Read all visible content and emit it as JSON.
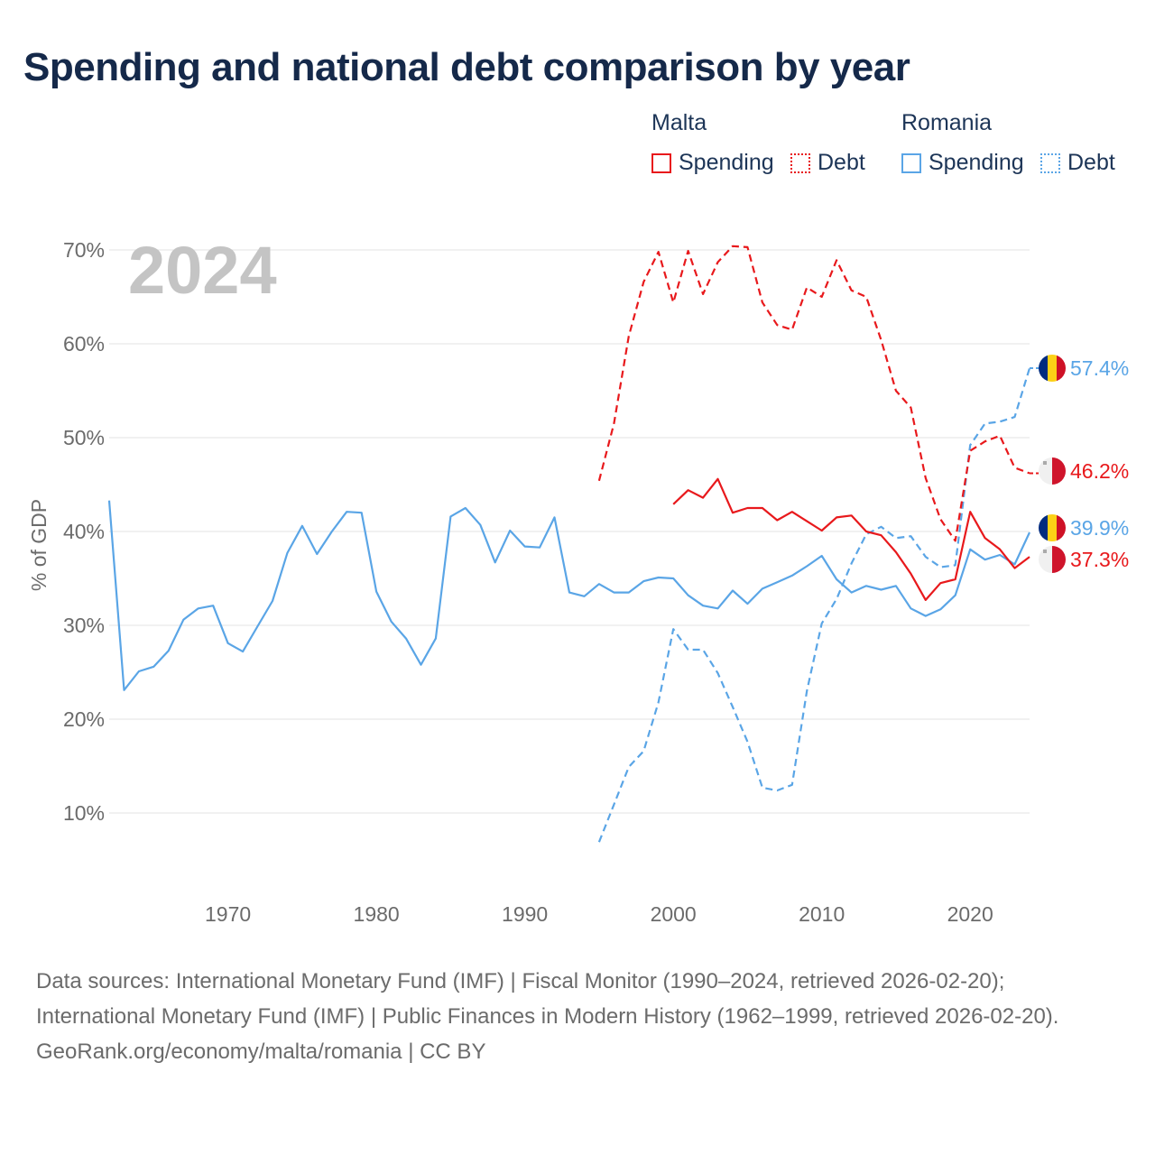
{
  "title": "Spending and national debt comparison by year",
  "legend": {
    "groups": [
      {
        "name": "Malta",
        "items": [
          {
            "label": "Spending",
            "style": "solid"
          },
          {
            "label": "Debt",
            "style": "dashed"
          }
        ],
        "color": "#e8191c"
      },
      {
        "name": "Romania",
        "items": [
          {
            "label": "Spending",
            "style": "solid"
          },
          {
            "label": "Debt",
            "style": "dashed"
          }
        ],
        "color": "#5aa5e6"
      }
    ]
  },
  "footer": {
    "sources": "Data sources: International Monetary Fund (IMF) | Fiscal Monitor (1990–2024, retrieved 2026-02-20); International Monetary Fund (IMF) | Public Finances in Modern History (1962–1999, retrieved 2026-02-20).",
    "credit": "GeoRank.org/economy/malta/romania | CC BY"
  },
  "chart_data": {
    "type": "line",
    "title": "Spending and national debt comparison by year",
    "year_label": "2024",
    "ylabel": "% of GDP",
    "xlabel": "",
    "xlim": [
      1962,
      2024
    ],
    "ylim": [
      3,
      75
    ],
    "y_ticks": [
      10,
      20,
      30,
      40,
      50,
      60,
      70
    ],
    "y_tick_labels": [
      "10%",
      "20%",
      "30%",
      "40%",
      "50%",
      "60%",
      "70%"
    ],
    "x_ticks": [
      1970,
      1980,
      1990,
      2000,
      2010,
      2020
    ],
    "x_tick_labels": [
      "1970",
      "1980",
      "1990",
      "2000",
      "2010",
      "2020"
    ],
    "grid": true,
    "colors": {
      "malta": "#e8191c",
      "romania": "#5aa5e6"
    },
    "series": [
      {
        "name": "Romania Spending",
        "country": "romania",
        "style": "solid",
        "end_label": "39.9%",
        "x": [
          1962,
          1963,
          1964,
          1965,
          1966,
          1967,
          1968,
          1969,
          1970,
          1971,
          1972,
          1973,
          1974,
          1975,
          1976,
          1977,
          1978,
          1979,
          1980,
          1981,
          1982,
          1983,
          1984,
          1985,
          1986,
          1987,
          1988,
          1989,
          1990,
          1991,
          1992,
          1993,
          1994,
          1995,
          1996,
          1997,
          1998,
          1999,
          2000,
          2001,
          2002,
          2003,
          2004,
          2005,
          2006,
          2007,
          2008,
          2009,
          2010,
          2011,
          2012,
          2013,
          2014,
          2015,
          2016,
          2017,
          2018,
          2019,
          2020,
          2021,
          2022,
          2023,
          2024
        ],
        "values": [
          43.3,
          23.1,
          25.1,
          25.6,
          27.3,
          30.6,
          31.8,
          32.1,
          28.1,
          27.2,
          29.9,
          32.6,
          37.7,
          40.6,
          37.6,
          40.0,
          42.1,
          42.0,
          33.6,
          30.4,
          28.6,
          25.8,
          28.6,
          41.6,
          42.5,
          40.7,
          36.7,
          40.1,
          38.4,
          38.3,
          41.5,
          33.5,
          33.1,
          34.4,
          33.5,
          33.5,
          34.7,
          35.1,
          35.0,
          33.2,
          32.1,
          31.8,
          33.7,
          32.3,
          33.9,
          34.6,
          35.3,
          36.3,
          37.4,
          34.9,
          33.5,
          34.2,
          33.8,
          34.2,
          31.8,
          31.0,
          31.7,
          33.2,
          38.1,
          37.0,
          37.5,
          36.5,
          39.9
        ]
      },
      {
        "name": "Romania Debt",
        "country": "romania",
        "style": "dashed",
        "end_label": "57.4%",
        "x": [
          1995,
          1996,
          1997,
          1998,
          1999,
          2000,
          2001,
          2002,
          2003,
          2004,
          2005,
          2006,
          2007,
          2008,
          2009,
          2010,
          2011,
          2012,
          2013,
          2014,
          2015,
          2016,
          2017,
          2018,
          2019,
          2020,
          2021,
          2022,
          2023,
          2024
        ],
        "values": [
          6.9,
          10.9,
          14.9,
          16.6,
          21.8,
          29.6,
          27.4,
          27.4,
          24.9,
          21.3,
          17.6,
          12.7,
          12.4,
          13.0,
          23.0,
          30.2,
          32.8,
          36.6,
          39.7,
          40.5,
          39.3,
          39.5,
          37.3,
          36.2,
          36.4,
          49.2,
          51.5,
          51.7,
          52.2,
          57.4
        ]
      },
      {
        "name": "Malta Spending",
        "country": "malta",
        "style": "solid",
        "end_label": "37.3%",
        "x": [
          2000,
          2001,
          2002,
          2003,
          2004,
          2005,
          2006,
          2007,
          2008,
          2009,
          2010,
          2011,
          2012,
          2013,
          2014,
          2015,
          2016,
          2017,
          2018,
          2019,
          2020,
          2021,
          2022,
          2023,
          2024
        ],
        "values": [
          42.9,
          44.4,
          43.6,
          45.6,
          42.0,
          42.5,
          42.5,
          41.2,
          42.1,
          41.1,
          40.1,
          41.5,
          41.7,
          40.0,
          39.6,
          37.8,
          35.5,
          32.7,
          34.5,
          34.9,
          42.1,
          39.3,
          38.1,
          36.1,
          37.3
        ]
      },
      {
        "name": "Malta Debt",
        "country": "malta",
        "style": "dashed",
        "end_label": "46.2%",
        "x": [
          1995,
          1996,
          1997,
          1998,
          1999,
          2000,
          2001,
          2002,
          2003,
          2004,
          2005,
          2006,
          2007,
          2008,
          2009,
          2010,
          2011,
          2012,
          2013,
          2014,
          2015,
          2016,
          2017,
          2018,
          2019,
          2020,
          2021,
          2022,
          2023,
          2024
        ],
        "values": [
          45.4,
          51.5,
          60.8,
          66.6,
          69.8,
          64.4,
          69.9,
          65.3,
          68.7,
          70.4,
          70.3,
          64.4,
          62.0,
          61.5,
          66.0,
          65.0,
          68.9,
          65.7,
          65.0,
          60.4,
          55.0,
          53.2,
          45.7,
          41.3,
          39.0,
          48.6,
          49.6,
          50.2,
          46.8,
          46.2
        ]
      }
    ]
  }
}
